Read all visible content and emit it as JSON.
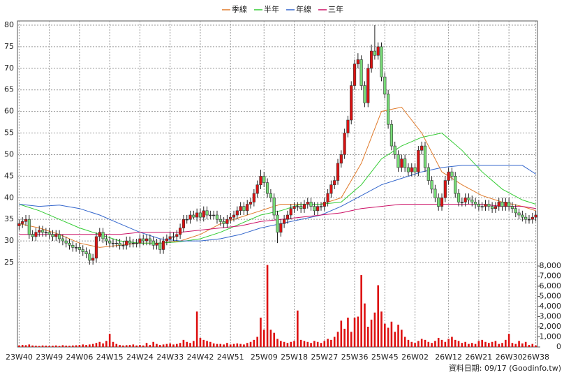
{
  "chart_data": {
    "type": "candlestick",
    "legend": "top",
    "grid": true,
    "categories": [
      "23W40",
      null,
      null,
      null,
      null,
      null,
      null,
      null,
      null,
      "23W49",
      null,
      null,
      null,
      null,
      null,
      null,
      null,
      null,
      "24W06",
      null,
      null,
      null,
      null,
      null,
      null,
      null,
      null,
      "24W15",
      null,
      null,
      null,
      null,
      null,
      null,
      null,
      null,
      "24W24",
      null,
      null,
      null,
      null,
      null,
      null,
      null,
      null,
      "24W33",
      null,
      null,
      null,
      null,
      null,
      null,
      null,
      null,
      "24W42",
      null,
      null,
      null,
      null,
      null,
      null,
      null,
      null,
      "24W51",
      null,
      null,
      null,
      null,
      null,
      null,
      null,
      null,
      null,
      "25W09",
      null,
      null,
      null,
      null,
      null,
      null,
      null,
      null,
      "25W18",
      null,
      null,
      null,
      null,
      null,
      null,
      null,
      null,
      "25W27",
      null,
      null,
      null,
      null,
      null,
      null,
      null,
      null,
      "25W36",
      null,
      null,
      null,
      null,
      null,
      null,
      null,
      null,
      "25W45",
      null,
      null,
      null,
      null,
      null,
      null,
      null,
      null,
      "26W02",
      null,
      null,
      null,
      null,
      null,
      null,
      null,
      null,
      null,
      "26W12",
      null,
      null,
      null,
      null,
      null,
      null,
      null,
      null,
      "26W21",
      null,
      null,
      null,
      null,
      null,
      null,
      null,
      null,
      "26W30",
      null,
      null,
      null,
      null,
      null,
      null,
      null,
      "26W38"
    ],
    "open": [
      33.5,
      34,
      34.5,
      35,
      31.5,
      31,
      32,
      32.5,
      32,
      32,
      31.5,
      31,
      31.5,
      30.5,
      30,
      29.5,
      29,
      28.5,
      28.5,
      28,
      27.5,
      27,
      25.5,
      26,
      31,
      32,
      30.5,
      30,
      29.5,
      29.5,
      29.5,
      29,
      29,
      30,
      29.5,
      29.5,
      29.5,
      30.5,
      30,
      30.5,
      30,
      29,
      29.5,
      28,
      30,
      30.5,
      31,
      31,
      31.5,
      33,
      35,
      35,
      36,
      35.5,
      36.5,
      35.5,
      37,
      36,
      36,
      36,
      35,
      34.5,
      34,
      35,
      35.5,
      36,
      37,
      38,
      37,
      38.5,
      39,
      41,
      43,
      45,
      43.5,
      41,
      40,
      36,
      32,
      34,
      35,
      36,
      37.5,
      38,
      38,
      37.5,
      38.5,
      39,
      38,
      37,
      38,
      38,
      39,
      41,
      43,
      44,
      48,
      50,
      55,
      58,
      66,
      71,
      72,
      66,
      62,
      70,
      74,
      73,
      75,
      68,
      64,
      57,
      52,
      50,
      47,
      49,
      47,
      46,
      47,
      46,
      51,
      52,
      47,
      44,
      42,
      40,
      38,
      40,
      44,
      46,
      45,
      41,
      39,
      39,
      40,
      39.5,
      39,
      38.5,
      38,
      38,
      38.5,
      38,
      37.5,
      38,
      39,
      38,
      39,
      38,
      37.5,
      36.5,
      36,
      35.5,
      35,
      35,
      35.5
    ],
    "high": [
      35,
      35.5,
      36,
      36,
      32.5,
      33,
      33.5,
      33.5,
      33,
      33,
      32.5,
      32.5,
      32.5,
      31.5,
      31,
      30.5,
      30,
      29.5,
      29.5,
      29,
      28.5,
      28,
      27,
      32,
      33,
      33,
      31.5,
      31,
      30.5,
      30.5,
      30.5,
      30,
      31,
      31,
      30.5,
      30.5,
      31.5,
      31.5,
      31.5,
      31.5,
      31,
      30.5,
      30.5,
      31,
      31.5,
      32,
      32,
      32.5,
      34,
      36,
      36,
      37,
      37,
      37.5,
      37.5,
      38,
      38,
      37,
      37,
      37,
      36,
      35.5,
      36,
      36.5,
      37,
      38,
      39,
      39,
      39.5,
      40,
      42,
      44,
      46.5,
      46,
      44.5,
      42,
      41,
      37,
      35,
      36,
      37,
      38.5,
      39,
      39,
      39,
      39.5,
      40,
      40,
      39,
      39,
      39,
      40,
      42,
      44,
      45,
      49,
      51,
      56,
      59,
      67,
      72,
      73.5,
      73,
      67,
      71,
      75.5,
      80,
      76,
      76,
      69,
      65,
      58,
      53,
      51,
      50,
      50,
      48,
      48,
      48,
      52,
      53,
      53,
      48,
      45,
      43,
      41,
      41,
      45,
      47,
      47,
      46,
      42,
      40,
      41,
      41,
      40.5,
      40,
      39.5,
      39,
      39.5,
      39.5,
      39,
      39,
      40,
      40,
      40,
      40,
      39,
      38.5,
      37.5,
      37,
      36.5,
      36,
      36.5,
      37
    ],
    "low": [
      32.5,
      33,
      33.5,
      30.5,
      30,
      30,
      31,
      31,
      31,
      30.5,
      30,
      30,
      29.5,
      29,
      28.5,
      28,
      27.5,
      27.5,
      27,
      26.5,
      26,
      24.5,
      24.5,
      25,
      30,
      29.5,
      29,
      28.5,
      28.5,
      28.5,
      28,
      28,
      28,
      28.5,
      28.5,
      28.5,
      28.5,
      29,
      29,
      29,
      28,
      28,
      27,
      27,
      29,
      29.5,
      30,
      30,
      30.5,
      32,
      34,
      34,
      35,
      34.5,
      34.5,
      34.5,
      35,
      35,
      35,
      34,
      33.5,
      33,
      33,
      34,
      34.5,
      35,
      36,
      36,
      36,
      37.5,
      38,
      40,
      42,
      42.5,
      40,
      39,
      35,
      29.5,
      31,
      33,
      34,
      35,
      36.5,
      37,
      36.5,
      36.5,
      37.5,
      37,
      36,
      36,
      37,
      37,
      38,
      40,
      42,
      43,
      47,
      49,
      54,
      57,
      65,
      70,
      65,
      61,
      61,
      69,
      72,
      72,
      67,
      63,
      56,
      51,
      49,
      46,
      46,
      46,
      45,
      45,
      45,
      45,
      50,
      46,
      43,
      41,
      39,
      37,
      37,
      39,
      43,
      44,
      40,
      38,
      38,
      38,
      38.5,
      38,
      37.5,
      37,
      37,
      37,
      37,
      36.5,
      36.5,
      37,
      37,
      37,
      37,
      36.5,
      35.5,
      35,
      34.5,
      34,
      34,
      34,
      34.5
    ],
    "close": [
      34,
      34.5,
      35,
      31.5,
      31,
      32,
      32.5,
      32,
      32,
      31.5,
      31,
      31.5,
      30.5,
      30,
      29.5,
      29,
      28.5,
      28.5,
      28,
      27.5,
      27,
      25.5,
      26,
      31,
      32,
      30.5,
      30,
      29.5,
      29.5,
      29.5,
      29,
      29,
      30,
      29.5,
      29.5,
      29.5,
      30.5,
      30,
      30.5,
      30,
      29,
      29.5,
      28,
      30,
      30.5,
      31,
      31,
      31.5,
      33,
      35,
      35,
      36,
      35.5,
      36.5,
      35.5,
      37,
      36,
      36,
      36,
      35,
      34.5,
      34,
      35,
      35.5,
      36,
      37,
      38,
      37,
      38.5,
      39,
      41,
      43,
      45,
      43.5,
      41,
      40,
      36,
      32,
      34,
      35,
      36,
      37.5,
      38,
      38,
      37.5,
      38.5,
      39,
      38,
      37,
      38,
      38,
      39,
      41,
      43,
      44,
      48,
      50,
      55,
      58,
      66,
      71,
      72,
      66,
      62,
      70,
      74,
      73,
      75,
      68,
      64,
      57,
      52,
      50,
      47,
      49,
      47,
      46,
      47,
      46,
      51,
      52,
      47,
      44,
      42,
      40,
      38,
      40,
      44,
      46,
      45,
      41,
      39,
      39,
      40,
      39.5,
      39,
      38.5,
      38,
      38,
      38.5,
      38,
      37.5,
      38,
      39,
      38,
      39,
      38,
      37.5,
      36.5,
      36,
      35.5,
      35,
      35,
      35.5,
      36
    ],
    "up_color": "#dd1111",
    "down_color": "#77dd77",
    "ylim": [
      25,
      80
    ],
    "yticks": [
      25,
      30,
      35,
      40,
      45,
      50,
      55,
      60,
      65,
      70,
      75,
      80
    ],
    "series": [
      {
        "name": "季線",
        "color": "#e07a2a",
        "x": [
          0,
          6,
          12,
          18,
          24,
          30,
          36,
          42,
          48,
          54,
          60,
          66,
          72,
          78,
          84,
          90,
          96,
          102,
          108,
          114,
          120,
          126,
          132,
          138,
          144,
          150,
          154
        ],
        "values": [
          34,
          33,
          31.5,
          29.5,
          28.5,
          29,
          29.5,
          29.5,
          30,
          31.5,
          34,
          35.5,
          37,
          38.5,
          38.5,
          38.5,
          40,
          48,
          60,
          61,
          55,
          46,
          43,
          40.5,
          39,
          38,
          37
        ]
      },
      {
        "name": "半年",
        "color": "#33cc33",
        "x": [
          0,
          6,
          12,
          18,
          24,
          30,
          36,
          42,
          48,
          54,
          60,
          66,
          72,
          78,
          84,
          90,
          96,
          102,
          108,
          114,
          120,
          126,
          132,
          138,
          144,
          150,
          154
        ],
        "values": [
          38.5,
          37,
          35,
          33,
          31.5,
          30,
          29.5,
          29.5,
          29.8,
          30.5,
          32,
          34,
          36,
          37,
          38.5,
          38.5,
          39,
          43,
          49,
          52,
          54,
          55,
          51,
          46,
          42,
          39.5,
          38.5
        ]
      },
      {
        "name": "年線",
        "color": "#3366cc",
        "x": [
          0,
          6,
          12,
          18,
          24,
          30,
          36,
          42,
          48,
          54,
          60,
          66,
          72,
          78,
          84,
          90,
          96,
          102,
          108,
          114,
          120,
          126,
          132,
          138,
          144,
          150,
          154
        ],
        "values": [
          38.5,
          38,
          38.3,
          37.5,
          36,
          34,
          32,
          30.5,
          30,
          30,
          30.5,
          31.5,
          33,
          34,
          35,
          36,
          38,
          40.5,
          43,
          44.5,
          46,
          47,
          47.5,
          47.5,
          47.5,
          47.5,
          45.5
        ]
      },
      {
        "name": "三年",
        "color": "#cc1166",
        "x": [
          0,
          6,
          12,
          18,
          24,
          30,
          36,
          42,
          48,
          54,
          60,
          66,
          72,
          78,
          84,
          90,
          96,
          102,
          108,
          114,
          120,
          126,
          132,
          138,
          144,
          150,
          154
        ],
        "values": [
          31.5,
          31.5,
          31.5,
          31.5,
          31.5,
          31.5,
          32,
          32,
          32,
          32.5,
          33,
          33.5,
          34.5,
          35,
          35.5,
          36,
          36.5,
          37.5,
          38,
          38.5,
          38.5,
          38.5,
          38.5,
          38.5,
          38,
          38,
          37.5
        ]
      }
    ],
    "volume": {
      "color": "#dd1111",
      "values": [
        150,
        200,
        180,
        250,
        150,
        120,
        100,
        150,
        130,
        100,
        120,
        150,
        100,
        180,
        130,
        120,
        150,
        170,
        200,
        250,
        200,
        250,
        300,
        400,
        500,
        350,
        600,
        1300,
        500,
        300,
        200,
        150,
        180,
        200,
        250,
        150,
        200,
        150,
        400,
        200,
        500,
        300,
        200,
        250,
        300,
        350,
        250,
        300,
        400,
        700,
        500,
        400,
        600,
        3500,
        900,
        700,
        600,
        500,
        350,
        300,
        300,
        250,
        400,
        250,
        300,
        350,
        300,
        250,
        400,
        500,
        700,
        1000,
        2900,
        1700,
        8100,
        1700,
        1400,
        800,
        600,
        500,
        400,
        500,
        600,
        3600,
        700,
        600,
        500,
        400,
        600,
        500,
        400,
        600,
        800,
        700,
        1000,
        1500,
        2600,
        1800,
        2900,
        1500,
        2900,
        3000,
        7100,
        4300,
        2000,
        2700,
        3400,
        6100,
        3500,
        2300,
        1900,
        2500,
        1500,
        2200,
        1700,
        1000,
        700,
        500,
        400,
        600,
        800,
        700,
        500,
        400,
        600,
        900,
        700,
        500,
        800,
        1000,
        700,
        600,
        400,
        500,
        300,
        400,
        300,
        600,
        700,
        500,
        400,
        500,
        600,
        300,
        400,
        700,
        1300,
        400,
        300,
        600,
        350,
        500,
        200,
        300,
        150
      ],
      "y2lim": [
        0,
        8000
      ],
      "y2ticks": [
        0,
        {
          "value": 1000,
          "label": "1,000"
        },
        {
          "value": 2000,
          "label": "2,000"
        },
        {
          "value": 3000,
          "label": "3,000"
        },
        {
          "value": 4000,
          "label": "4,000"
        },
        {
          "value": 5000,
          "label": "5,000"
        },
        {
          "value": 6000,
          "label": "6,000"
        },
        {
          "value": 7000,
          "label": "7,000"
        },
        {
          "value": 8000,
          "label": "8,000"
        }
      ]
    },
    "footnote": "資料日期: 09/17  (Goodinfo.tw)"
  }
}
